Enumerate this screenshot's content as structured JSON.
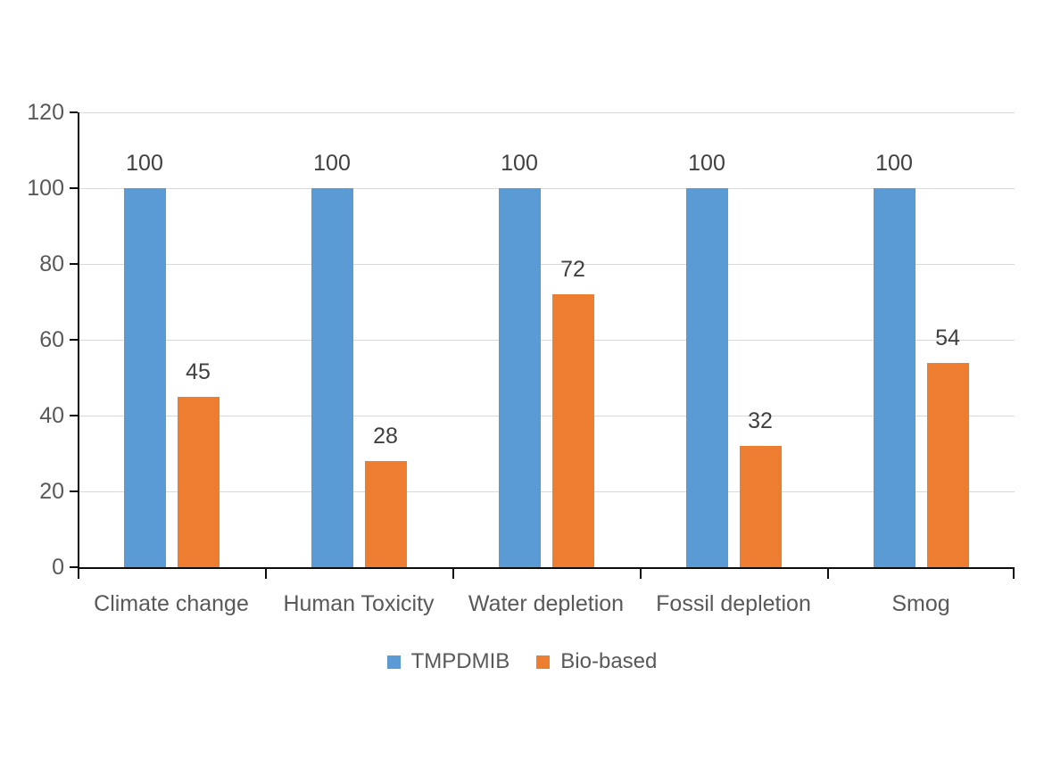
{
  "chart_data": {
    "type": "bar",
    "title": "",
    "xlabel": "",
    "ylabel": "",
    "categories": [
      "Climate change",
      "Human Toxicity",
      "Water depletion",
      "Fossil depletion",
      "Smog"
    ],
    "series": [
      {
        "name": "TMPDMIB",
        "color": "#5B9BD5",
        "values": [
          100,
          100,
          100,
          100,
          100
        ]
      },
      {
        "name": "Bio-based",
        "color": "#ED7D31",
        "values": [
          45,
          28,
          72,
          32,
          54
        ]
      }
    ],
    "ylim": [
      0,
      120
    ],
    "yticks": [
      0,
      20,
      40,
      60,
      80,
      100,
      120
    ],
    "grid": true,
    "data_labels": true,
    "legend_position": "bottom"
  },
  "style": {
    "background": "#FFFFFF",
    "gridline_color": "#D9D9D9",
    "axis_color": "#0D0D0D",
    "tick_label_color": "#595959",
    "data_label_color": "#404040"
  }
}
